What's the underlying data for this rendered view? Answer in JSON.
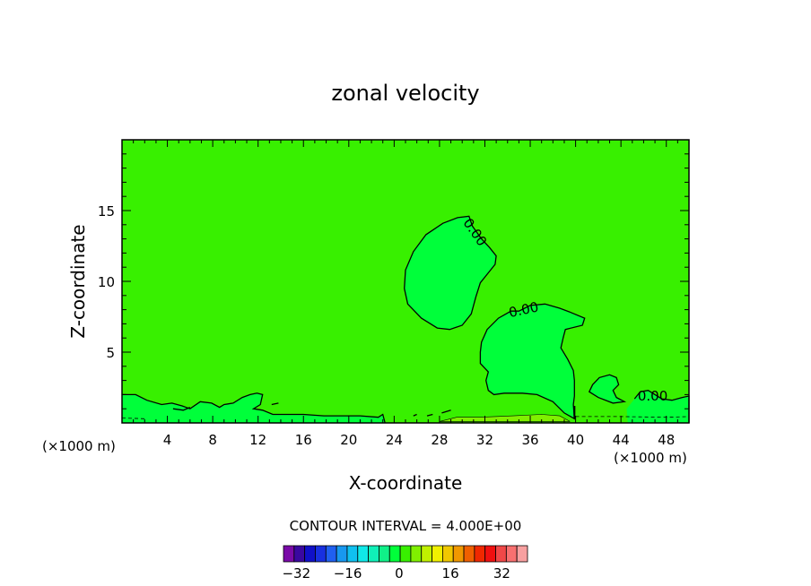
{
  "chart_data": {
    "type": "contour",
    "title": "zonal velocity",
    "xlabel": "X-coordinate",
    "ylabel": "Z-coordinate",
    "x_unit": "(×1000 m)",
    "xlim": [
      0,
      50
    ],
    "ylim": [
      0,
      20
    ],
    "x_ticks": [
      4,
      8,
      12,
      16,
      20,
      24,
      28,
      32,
      36,
      40,
      44,
      48
    ],
    "y_ticks": [
      5,
      10,
      15
    ],
    "contour_interval_text": "CONTOUR INTERVAL = 4.000E+00",
    "contour_labels": [
      {
        "text": "0.00",
        "x": 30.8,
        "z": 13.6
      },
      {
        "text": "0.00",
        "x": 35.5,
        "z": 8.0
      },
      {
        "text": "0.00",
        "x": 46.8,
        "z": 1.9
      }
    ],
    "colorbar": {
      "colors": [
        "#7a0aa8",
        "#3a08a0",
        "#1010c8",
        "#1830e0",
        "#2060f0",
        "#1898f0",
        "#10c0f0",
        "#10e8e8",
        "#10f0b8",
        "#10f088",
        "#00ff3a",
        "#38f000",
        "#80f000",
        "#c0f000",
        "#f0f000",
        "#f0c800",
        "#f09800",
        "#f06000",
        "#f02800",
        "#f01010",
        "#f04848",
        "#f87070",
        "#f8a0a0"
      ],
      "tick_labels": [
        "−32",
        "−16",
        "0",
        "16",
        "32"
      ],
      "tick_values": [
        -32,
        -16,
        0,
        16,
        32
      ]
    },
    "field_color": "#38f000",
    "negative_region_color": "#00ff3a"
  }
}
